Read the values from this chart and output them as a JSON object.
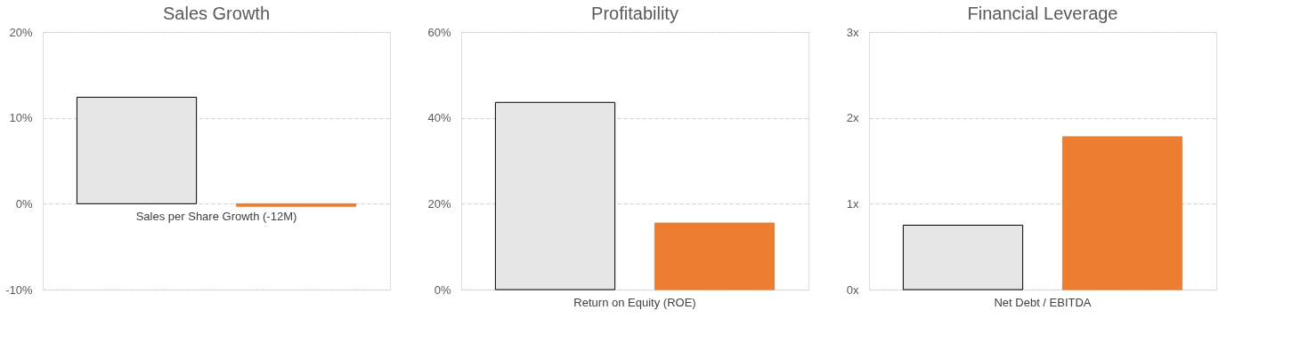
{
  "chart_data": [
    {
      "type": "bar",
      "title": "Sales Growth",
      "categories": [
        "Sales per Share Growth (-12M)"
      ],
      "series": [
        {
          "color": "#e6e6e6",
          "values": [
            12.4
          ]
        },
        {
          "color": "#ed7d31",
          "values": [
            -0.3
          ]
        }
      ],
      "ylim": [
        -10,
        20
      ],
      "yticks": [
        {
          "value": -10,
          "label": "-10%"
        },
        {
          "value": 0,
          "label": "0%"
        },
        {
          "value": 10,
          "label": "10%"
        },
        {
          "value": 20,
          "label": "20%"
        }
      ],
      "grid": "y"
    },
    {
      "type": "bar",
      "title": "Profitability",
      "categories": [
        "Return on Equity (ROE)"
      ],
      "series": [
        {
          "color": "#e6e6e6",
          "values": [
            43.6
          ]
        },
        {
          "color": "#ed7d31",
          "values": [
            15.5
          ]
        }
      ],
      "ylim": [
        0,
        60
      ],
      "yticks": [
        {
          "value": 0,
          "label": "0%"
        },
        {
          "value": 20,
          "label": "20%"
        },
        {
          "value": 40,
          "label": "40%"
        },
        {
          "value": 60,
          "label": "60%"
        }
      ],
      "grid": "y"
    },
    {
      "type": "bar",
      "title": "Financial Leverage",
      "categories": [
        "Net Debt / EBITDA"
      ],
      "series": [
        {
          "color": "#e6e6e6",
          "values": [
            0.75
          ]
        },
        {
          "color": "#ed7d31",
          "values": [
            1.78
          ]
        }
      ],
      "ylim": [
        0,
        3
      ],
      "yticks": [
        {
          "value": 0,
          "label": "0x"
        },
        {
          "value": 1,
          "label": "1x"
        },
        {
          "value": 2,
          "label": "2x"
        },
        {
          "value": 3,
          "label": "3x"
        }
      ],
      "grid": "y"
    }
  ]
}
